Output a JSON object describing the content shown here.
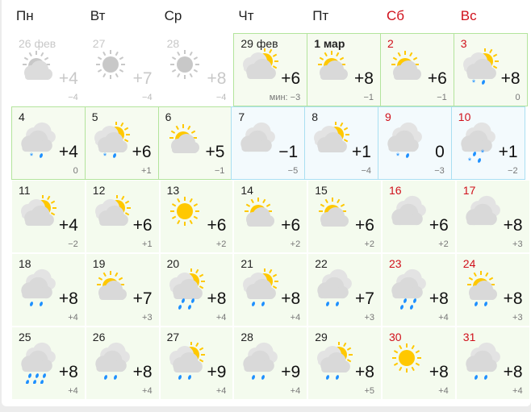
{
  "weekdays": [
    {
      "label": "Пн",
      "weekend": false
    },
    {
      "label": "Вт",
      "weekend": false
    },
    {
      "label": "Ср",
      "weekend": false
    },
    {
      "label": "Чт",
      "weekend": false
    },
    {
      "label": "Пт",
      "weekend": false
    },
    {
      "label": "Сб",
      "weekend": true
    },
    {
      "label": "Вс",
      "weekend": true
    }
  ],
  "colors": {
    "sun": "#ffc800",
    "cloud": "#d9d9d9",
    "cloud_back": "#e3e3e3",
    "precip": "#1e90ff",
    "weekend": "#d0101b",
    "past": "#c8c8c8"
  },
  "weeks": [
    [
      {
        "date": "26 фев",
        "style": "past",
        "icon": "sun-cloud",
        "precip": "none",
        "temp": "+4",
        "low": "−4"
      },
      {
        "date": "27",
        "style": "past",
        "icon": "sun",
        "precip": "none",
        "temp": "+7",
        "low": "−4"
      },
      {
        "date": "28",
        "style": "past",
        "icon": "sun",
        "precip": "none",
        "temp": "+8",
        "low": "−4"
      },
      {
        "date": "29 фев",
        "style": "green",
        "icon": "cloudy-sun",
        "precip": "none",
        "temp": "+6",
        "low": "мин: −3"
      },
      {
        "date": "1 мар",
        "style": "green",
        "bold": true,
        "icon": "sun-cloud",
        "precip": "none",
        "temp": "+8",
        "low": "−1"
      },
      {
        "date": "2",
        "style": "green",
        "weekend": true,
        "icon": "sun-cloud",
        "precip": "none",
        "temp": "+6",
        "low": "−1"
      },
      {
        "date": "3",
        "style": "green",
        "weekend": true,
        "icon": "cloudy-sun",
        "precip": "snow-rain",
        "temp": "+8",
        "low": "0"
      }
    ],
    [
      {
        "date": "4",
        "style": "green",
        "icon": "overcast",
        "precip": "snow-rain",
        "temp": "+4",
        "low": "0"
      },
      {
        "date": "5",
        "style": "green",
        "icon": "cloudy-sun",
        "precip": "snow-rain",
        "temp": "+6",
        "low": "+1"
      },
      {
        "date": "6",
        "style": "green",
        "icon": "sun-cloud",
        "precip": "none",
        "temp": "+5",
        "low": "−1"
      },
      {
        "date": "7",
        "style": "blue",
        "icon": "overcast",
        "precip": "none",
        "temp": "−1",
        "low": "−5"
      },
      {
        "date": "8",
        "style": "blue",
        "icon": "cloudy-sun",
        "precip": "none",
        "temp": "+1",
        "low": "−4"
      },
      {
        "date": "9",
        "style": "blue",
        "weekend": true,
        "icon": "overcast",
        "precip": "snow-rain",
        "temp": "0",
        "low": "−3"
      },
      {
        "date": "10",
        "style": "blue",
        "weekend": true,
        "icon": "overcast",
        "precip": "snow-rain-heavy",
        "temp": "+1",
        "low": "−2"
      }
    ],
    [
      {
        "date": "11",
        "style": "plain",
        "icon": "cloudy-sun",
        "precip": "none",
        "temp": "+4",
        "low": "−2"
      },
      {
        "date": "12",
        "style": "plain",
        "icon": "cloudy-sun",
        "precip": "none",
        "temp": "+6",
        "low": "+1"
      },
      {
        "date": "13",
        "style": "plain",
        "icon": "sun",
        "precip": "none",
        "temp": "+6",
        "low": "+2"
      },
      {
        "date": "14",
        "style": "plain",
        "icon": "sun-cloud",
        "precip": "none",
        "temp": "+6",
        "low": "+2"
      },
      {
        "date": "15",
        "style": "plain",
        "icon": "sun-cloud",
        "precip": "none",
        "temp": "+6",
        "low": "+2"
      },
      {
        "date": "16",
        "style": "plain",
        "weekend": true,
        "icon": "overcast",
        "precip": "none",
        "temp": "+6",
        "low": "+2"
      },
      {
        "date": "17",
        "style": "plain",
        "weekend": true,
        "icon": "overcast",
        "precip": "none",
        "temp": "+8",
        "low": "+3"
      }
    ],
    [
      {
        "date": "18",
        "style": "plain",
        "icon": "overcast",
        "precip": "rain",
        "temp": "+8",
        "low": "+4"
      },
      {
        "date": "19",
        "style": "plain",
        "icon": "sun-cloud",
        "precip": "none",
        "temp": "+7",
        "low": "+3"
      },
      {
        "date": "20",
        "style": "plain",
        "icon": "cloudy-sun",
        "precip": "rain-moderate",
        "temp": "+8",
        "low": "+4"
      },
      {
        "date": "21",
        "style": "plain",
        "icon": "cloudy-sun",
        "precip": "rain",
        "temp": "+8",
        "low": "+4"
      },
      {
        "date": "22",
        "style": "plain",
        "icon": "overcast",
        "precip": "rain",
        "temp": "+7",
        "low": "+3"
      },
      {
        "date": "23",
        "style": "plain",
        "weekend": true,
        "icon": "overcast",
        "precip": "rain-moderate",
        "temp": "+8",
        "low": "+4"
      },
      {
        "date": "24",
        "style": "plain",
        "weekend": true,
        "icon": "sun-cloud",
        "precip": "rain",
        "temp": "+8",
        "low": "+3"
      }
    ],
    [
      {
        "date": "25",
        "style": "plain",
        "icon": "overcast",
        "precip": "rain-heavy",
        "temp": "+8",
        "low": "+4"
      },
      {
        "date": "26",
        "style": "plain",
        "icon": "overcast",
        "precip": "rain",
        "temp": "+8",
        "low": "+4"
      },
      {
        "date": "27",
        "style": "plain",
        "icon": "cloudy-sun",
        "precip": "rain",
        "temp": "+9",
        "low": "+4"
      },
      {
        "date": "28",
        "style": "plain",
        "icon": "overcast",
        "precip": "rain",
        "temp": "+9",
        "low": "+4"
      },
      {
        "date": "29",
        "style": "plain",
        "icon": "cloudy-sun",
        "precip": "rain",
        "temp": "+8",
        "low": "+5"
      },
      {
        "date": "30",
        "style": "plain",
        "weekend": true,
        "icon": "sun",
        "precip": "none",
        "temp": "+8",
        "low": "+4"
      },
      {
        "date": "31",
        "style": "plain",
        "weekend": true,
        "icon": "overcast",
        "precip": "rain",
        "temp": "+8",
        "low": "+4"
      }
    ]
  ]
}
